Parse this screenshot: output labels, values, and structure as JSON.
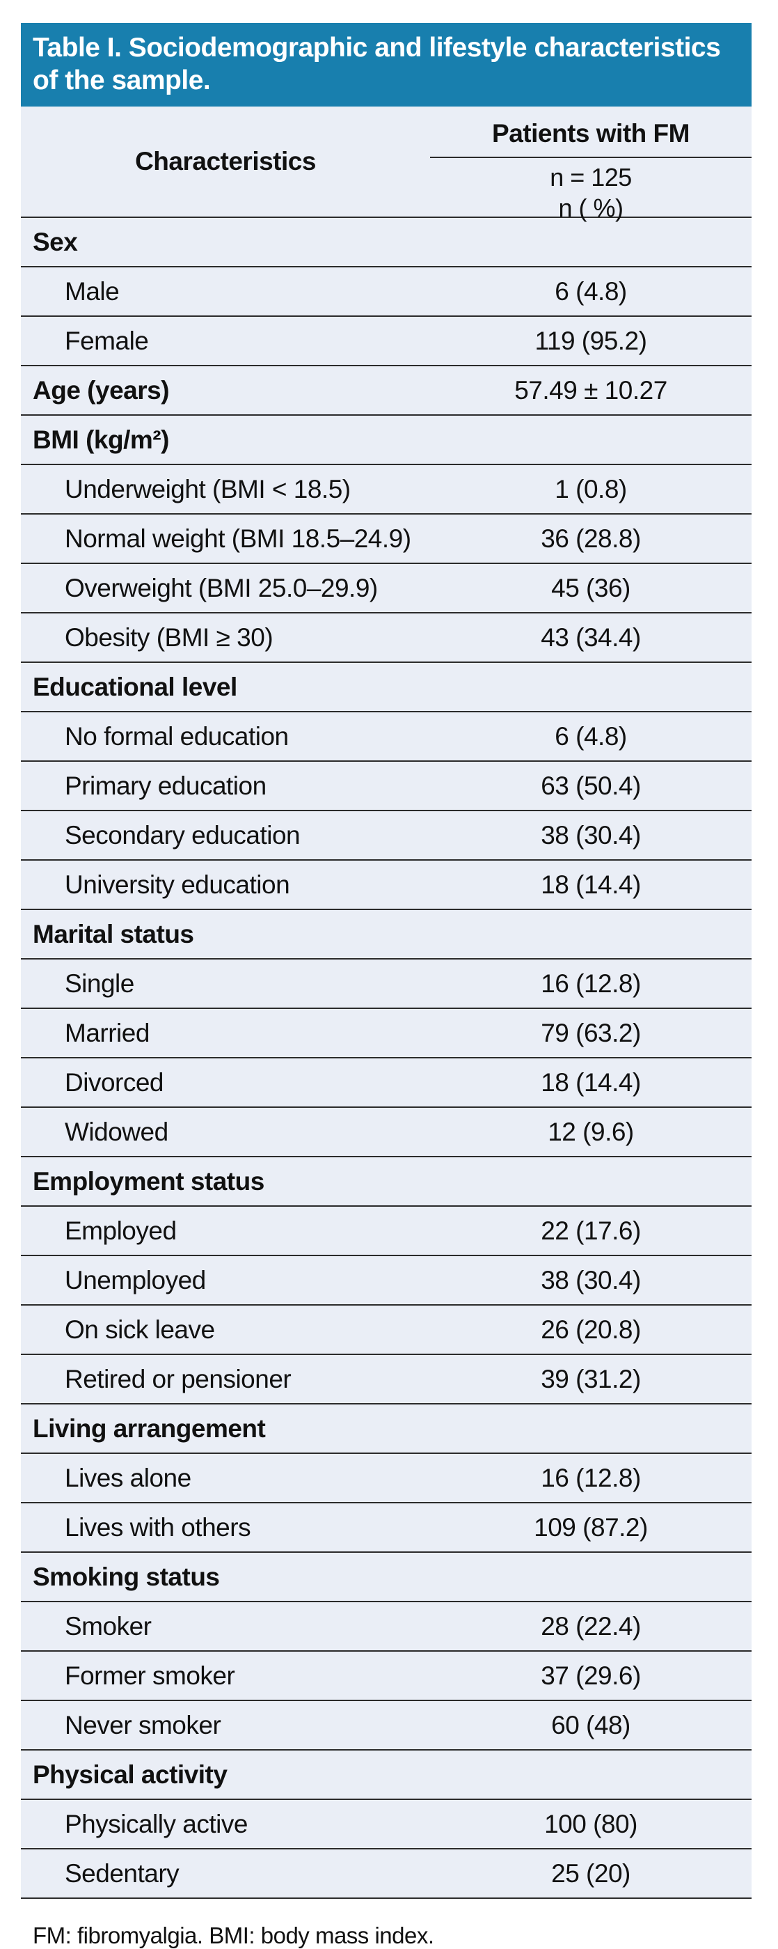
{
  "colors": {
    "accent": "#187fae",
    "row_bg": "#eaeef6",
    "line": "#2b2b2b"
  },
  "table": {
    "title": "Table I. Sociodemographic and lifestyle characteristics of the sample.",
    "columns": {
      "characteristics": "Characteristics",
      "group_header": "Patients with FM",
      "n_line1": "n = 125",
      "n_line2": "n ( %)"
    },
    "rows": [
      {
        "type": "section",
        "label": "Sex",
        "value": ""
      },
      {
        "type": "item",
        "label": "Male",
        "value": "6 (4.8)"
      },
      {
        "type": "item",
        "label": "Female",
        "value": "119 (95.2)"
      },
      {
        "type": "stat",
        "label": "Age (years)",
        "value": "57.49 ± 10.27"
      },
      {
        "type": "section",
        "label": "BMI (kg/m²)",
        "value": ""
      },
      {
        "type": "item",
        "label": "Underweight (BMI < 18.5)",
        "value": "1 (0.8)"
      },
      {
        "type": "item",
        "label": "Normal weight (BMI 18.5–24.9)",
        "value": "36 (28.8)"
      },
      {
        "type": "item",
        "label": "Overweight (BMI 25.0–29.9)",
        "value": "45 (36)"
      },
      {
        "type": "item",
        "label": "Obesity (BMI ≥ 30)",
        "value": "43 (34.4)"
      },
      {
        "type": "section",
        "label": "Educational level",
        "value": ""
      },
      {
        "type": "item",
        "label": "No formal education",
        "value": "6 (4.8)"
      },
      {
        "type": "item",
        "label": "Primary education",
        "value": "63 (50.4)"
      },
      {
        "type": "item",
        "label": "Secondary education",
        "value": "38 (30.4)"
      },
      {
        "type": "item",
        "label": "University education",
        "value": "18 (14.4)"
      },
      {
        "type": "section",
        "label": "Marital status",
        "value": ""
      },
      {
        "type": "item",
        "label": "Single",
        "value": "16 (12.8)"
      },
      {
        "type": "item",
        "label": "Married",
        "value": "79 (63.2)"
      },
      {
        "type": "item",
        "label": "Divorced",
        "value": "18 (14.4)"
      },
      {
        "type": "item",
        "label": "Widowed",
        "value": "12 (9.6)"
      },
      {
        "type": "section",
        "label": "Employment status",
        "value": ""
      },
      {
        "type": "item",
        "label": "Employed",
        "value": "22 (17.6)"
      },
      {
        "type": "item",
        "label": "Unemployed",
        "value": "38 (30.4)"
      },
      {
        "type": "item",
        "label": "On sick leave",
        "value": "26 (20.8)"
      },
      {
        "type": "item",
        "label": "Retired or pensioner",
        "value": "39 (31.2)"
      },
      {
        "type": "section",
        "label": "Living arrangement",
        "value": ""
      },
      {
        "type": "item",
        "label": "Lives alone",
        "value": "16 (12.8)"
      },
      {
        "type": "item",
        "label": "Lives with others",
        "value": "109 (87.2)"
      },
      {
        "type": "section",
        "label": "Smoking status",
        "value": ""
      },
      {
        "type": "item",
        "label": "Smoker",
        "value": "28 (22.4)"
      },
      {
        "type": "item",
        "label": "Former smoker",
        "value": "37 (29.6)"
      },
      {
        "type": "item",
        "label": "Never smoker",
        "value": "60 (48)"
      },
      {
        "type": "section",
        "label": "Physical activity",
        "value": ""
      },
      {
        "type": "item",
        "label": "Physically active",
        "value": "100 (80)"
      },
      {
        "type": "item",
        "label": "Sedentary",
        "value": "25 (20)"
      }
    ],
    "footnote": "FM: fibromyalgia. BMI: body mass index."
  }
}
